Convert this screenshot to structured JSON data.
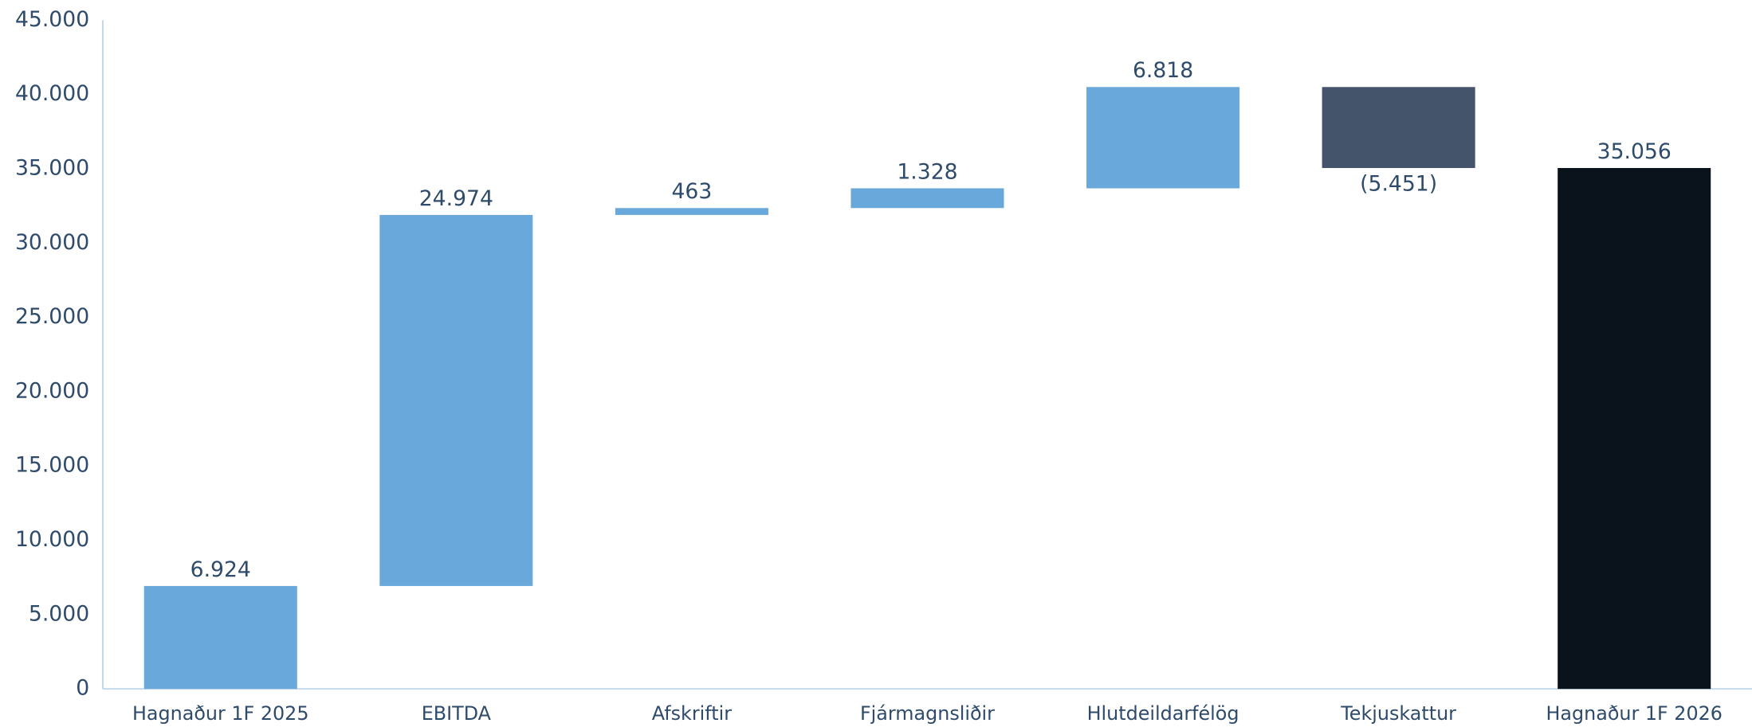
{
  "chart_data": {
    "type": "waterfall",
    "categories": [
      "Hagnaður 1F 2025",
      "EBITDA",
      "Afskriftir",
      "Fjármagnsliðir",
      "Hlutdeildarfélög",
      "Tekjuskattur",
      "Hagnaður 1F 2026"
    ],
    "values": [
      6924,
      24974,
      463,
      1328,
      6818,
      -5451,
      35056
    ],
    "value_labels": [
      "6.924",
      "24.974",
      "463",
      "1.328",
      "6.818",
      "(5.451)",
      "35.056"
    ],
    "is_total": [
      true,
      false,
      false,
      false,
      false,
      false,
      true
    ],
    "colors": [
      "#69a8da",
      "#69a8da",
      "#69a8da",
      "#69a8da",
      "#69a8da",
      "#44546a",
      "#0a121b"
    ],
    "ylim": [
      0,
      45000
    ],
    "yticks": [
      0,
      {
        "value": 5000,
        "label": "5.000"
      },
      {
        "value": 10000,
        "label": "10.000"
      },
      {
        "value": 15000,
        "label": "15.000"
      },
      {
        "value": 20000,
        "label": "20.000"
      },
      {
        "value": 25000,
        "label": "25.000"
      },
      {
        "value": 30000,
        "label": "30.000"
      },
      {
        "value": 35000,
        "label": "35.000"
      },
      {
        "value": 40000,
        "label": "40.000"
      },
      {
        "value": 45000,
        "label": "45.000"
      }
    ],
    "grid": false
  }
}
